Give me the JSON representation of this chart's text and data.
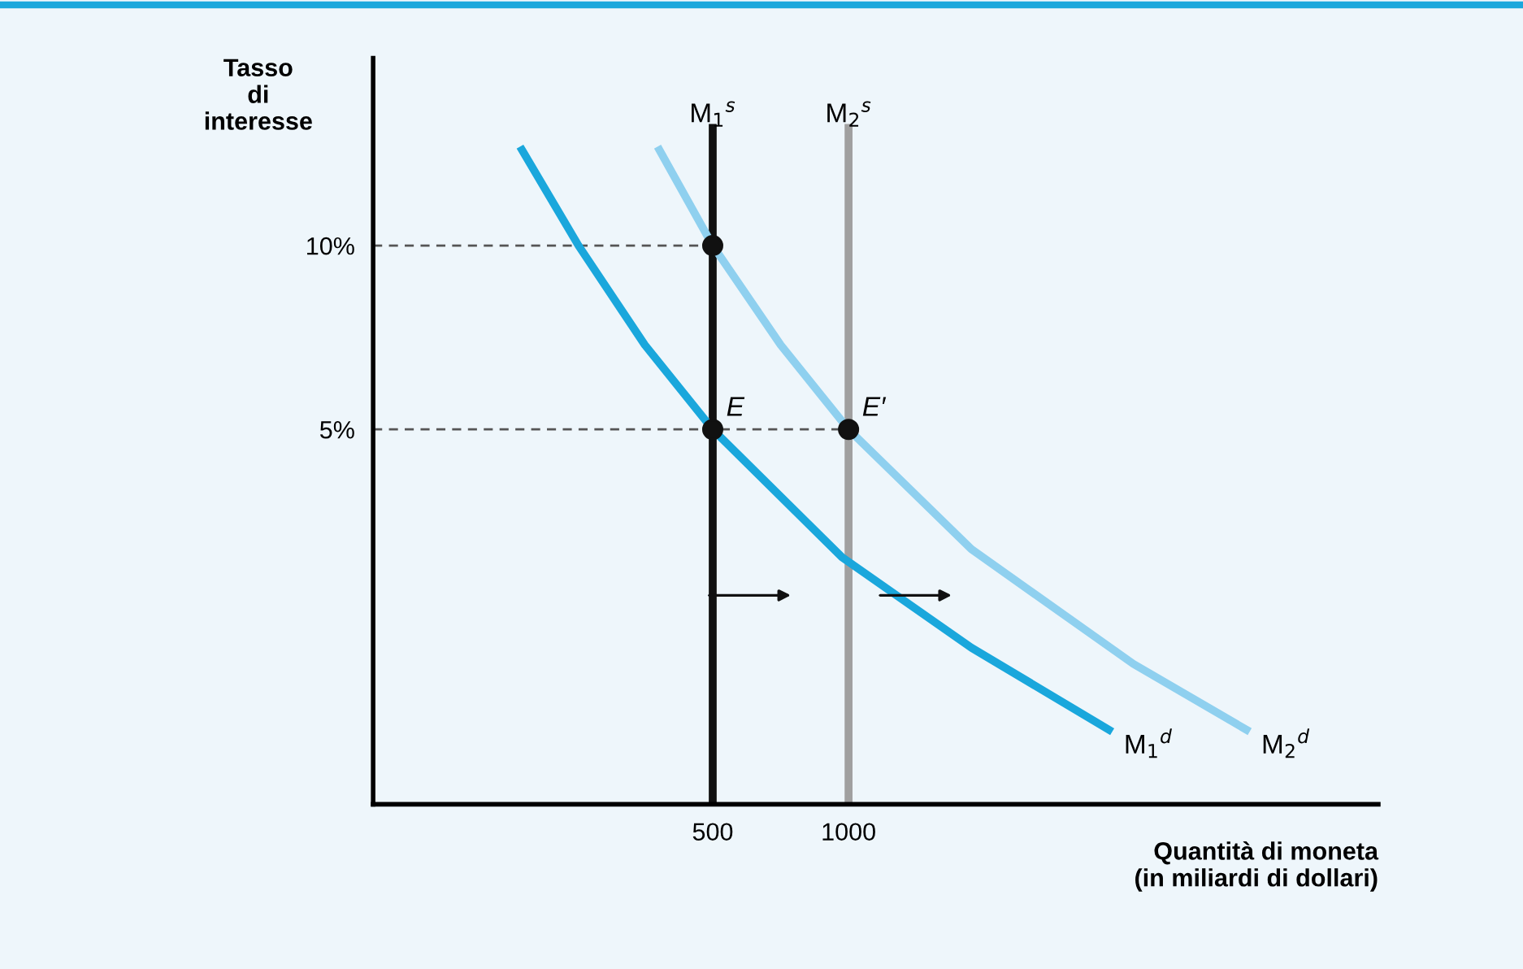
{
  "chart_data": {
    "type": "line",
    "xlabel": "Quantità di moneta\n(in miliardi di dollari)",
    "ylabel": "Tasso\ndi\ninteresse",
    "xlim": [
      -750,
      2950
    ],
    "ylim": [
      -5.2,
      15.1
    ],
    "xticks": [
      500,
      1000
    ],
    "yticks": [
      {
        "value": 5,
        "label": "5%"
      },
      {
        "value": 10,
        "label": "10%"
      }
    ],
    "grid": false,
    "legend": false,
    "series": [
      {
        "line_style": "dashed",
        "color": "#555555",
        "x": [
          -750,
          500
        ],
        "values": [
          10,
          10
        ]
      },
      {
        "line_style": "dashed",
        "color": "#555555",
        "x": [
          -750,
          1000
        ],
        "values": [
          5,
          5
        ]
      },
      {
        "name": "M$_{1}$$^{s}$",
        "color": "#111111",
        "x": [
          500,
          500
        ],
        "values": [
          -5.2,
          13.2
        ]
      },
      {
        "name": "M$_{2}$$^{s}$",
        "color": "#a0a0a0",
        "x": [
          1000,
          1000
        ],
        "values": [
          -5.2,
          13.2
        ]
      },
      {
        "name": "M$_{2}$$^{d}$",
        "color": "#8fd0ef",
        "x": [
          304,
          500,
          750,
          1000,
          1452,
          2048,
          2464
        ],
        "values": [
          12.6,
          10,
          7.3,
          5,
          1.74,
          -1.38,
          -3.17
        ]
      },
      {
        "name": "M$_{1}$$^{d}$",
        "color": "#1aa7dc",
        "x": [
          -202,
          6,
          250,
          500,
          976,
          1452,
          1958
        ],
        "values": [
          12.6,
          10,
          7.3,
          5,
          1.52,
          -0.94,
          -3.17
        ]
      },
      {
        "type": "scatter",
        "marker": "circle",
        "color": "#111111",
        "x": [
          500,
          500,
          1000
        ],
        "values": [
          10,
          5,
          5
        ]
      }
    ],
    "annotations": [
      {
        "text": "E",
        "x": 500,
        "y": 5
      },
      {
        "text": "E′",
        "x": 1000,
        "y": 5
      }
    ]
  }
}
